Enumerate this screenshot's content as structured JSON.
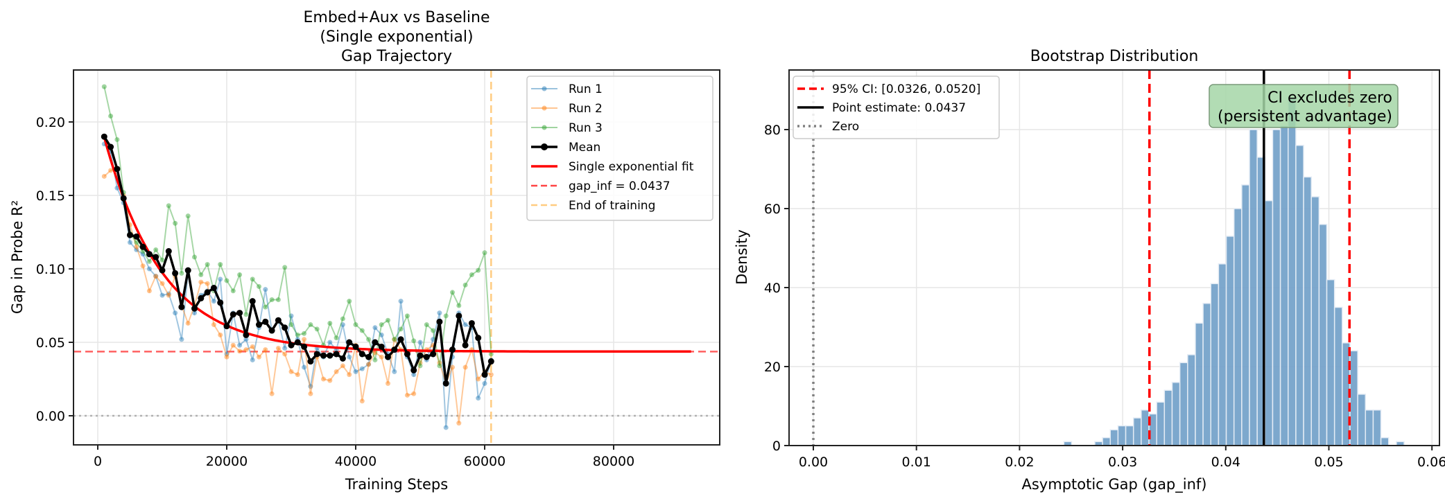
{
  "chart_data": [
    {
      "type": "line",
      "title": "Embed+Aux vs Baseline\n(Single exponential)\nGap Trajectory",
      "title_lines": [
        "Embed+Aux vs Baseline",
        "(Single exponential)",
        "Gap Trajectory"
      ],
      "xlabel": "Training Steps",
      "ylabel": "Gap in Probe R²",
      "xlim": [
        -4000,
        96000
      ],
      "ylim": [
        -0.02,
        0.235
      ],
      "xticks": [
        "0",
        "20000",
        "40000",
        "60000",
        "80000"
      ],
      "xtick_values": [
        0,
        20000,
        40000,
        60000,
        80000
      ],
      "yticks": [
        "0.00",
        "0.05",
        "0.10",
        "0.15",
        "0.20"
      ],
      "ytick_values": [
        0.0,
        0.05,
        0.1,
        0.15,
        0.2
      ],
      "grid": true,
      "legend_position": "upper right",
      "legend": [
        "Run 1",
        "Run 2",
        "Run 3",
        "Mean",
        "Single exponential fit",
        "gap_inf = 0.0437",
        "End of training"
      ],
      "x": [
        1000,
        2000,
        3000,
        4000,
        5000,
        6000,
        7000,
        8000,
        9000,
        10000,
        11000,
        12000,
        13000,
        14000,
        15000,
        16000,
        17000,
        18000,
        19000,
        20000,
        21000,
        22000,
        23000,
        24000,
        25000,
        26000,
        27000,
        28000,
        29000,
        30000,
        31000,
        32000,
        33000,
        34000,
        35000,
        36000,
        37000,
        38000,
        39000,
        40000,
        41000,
        42000,
        43000,
        44000,
        45000,
        46000,
        47000,
        48000,
        49000,
        50000,
        51000,
        52000,
        53000,
        54000,
        55000,
        56000,
        57000,
        58000,
        59000,
        60000,
        61000
      ],
      "series": [
        {
          "name": "Run 1",
          "color": "#1f77b4",
          "values": [
            0.185,
            0.18,
            0.155,
            0.145,
            0.118,
            0.113,
            0.11,
            0.1,
            0.095,
            0.082,
            0.083,
            0.07,
            0.052,
            0.098,
            0.07,
            0.082,
            0.085,
            0.078,
            0.093,
            0.042,
            0.07,
            0.048,
            0.052,
            0.038,
            0.06,
            0.086,
            0.058,
            0.065,
            0.046,
            0.068,
            0.052,
            0.033,
            0.02,
            0.046,
            0.04,
            0.05,
            0.045,
            0.062,
            0.04,
            0.03,
            0.032,
            0.035,
            0.06,
            0.055,
            0.042,
            0.03,
            0.078,
            0.04,
            0.028,
            0.05,
            0.038,
            0.052,
            0.07,
            -0.008,
            0.04,
            0.07,
            0.062,
            0.06,
            0.012,
            0.022,
            0.038
          ]
        },
        {
          "name": "Run 2",
          "color": "#ff7f0e",
          "values": [
            0.163,
            0.167,
            0.168,
            0.15,
            0.13,
            0.115,
            0.102,
            0.085,
            0.095,
            0.09,
            0.082,
            0.095,
            0.075,
            0.063,
            0.075,
            0.091,
            0.09,
            0.062,
            0.055,
            0.04,
            0.048,
            0.044,
            0.045,
            0.047,
            0.04,
            0.045,
            0.015,
            0.046,
            0.042,
            0.03,
            0.028,
            0.052,
            0.015,
            0.04,
            0.025,
            0.024,
            0.03,
            0.034,
            0.028,
            0.048,
            0.01,
            0.035,
            0.043,
            0.04,
            0.022,
            0.052,
            0.045,
            0.014,
            0.015,
            0.036,
            0.045,
            0.048,
            0.036,
            0.022,
            0.033,
            -0.005,
            0.033,
            0.045,
            0.025,
            0.03,
            0.028
          ]
        },
        {
          "name": "Run 3",
          "color": "#2ca02c",
          "values": [
            0.224,
            0.204,
            0.188,
            0.152,
            0.124,
            0.118,
            0.112,
            0.105,
            0.113,
            0.106,
            0.143,
            0.131,
            0.097,
            0.136,
            0.108,
            0.096,
            0.103,
            0.085,
            0.103,
            0.092,
            0.085,
            0.096,
            0.069,
            0.093,
            0.088,
            0.074,
            0.079,
            0.079,
            0.101,
            0.062,
            0.055,
            0.056,
            0.062,
            0.059,
            0.048,
            0.063,
            0.053,
            0.066,
            0.078,
            0.062,
            0.058,
            0.052,
            0.038,
            0.062,
            0.065,
            0.052,
            0.059,
            0.068,
            0.051,
            0.034,
            0.062,
            0.058,
            0.034,
            0.068,
            0.084,
            0.075,
            0.089,
            0.096,
            0.099,
            0.111,
            0.042
          ]
        },
        {
          "name": "Mean",
          "color": "#000000",
          "values": [
            0.19,
            0.183,
            0.168,
            0.148,
            0.123,
            0.122,
            0.115,
            0.11,
            0.108,
            0.099,
            0.112,
            0.097,
            0.074,
            0.099,
            0.073,
            0.08,
            0.084,
            0.087,
            0.077,
            0.061,
            0.069,
            0.07,
            0.055,
            0.078,
            0.062,
            0.064,
            0.058,
            0.065,
            0.06,
            0.048,
            0.05,
            0.047,
            0.037,
            0.042,
            0.041,
            0.041,
            0.042,
            0.039,
            0.05,
            0.047,
            0.042,
            0.04,
            0.05,
            0.047,
            0.04,
            0.045,
            0.052,
            0.042,
            0.031,
            0.041,
            0.04,
            0.042,
            0.064,
            0.022,
            0.045,
            0.068,
            0.048,
            0.063,
            0.053,
            0.028,
            0.037
          ]
        },
        {
          "name": "Single exponential fit",
          "color": "#ff0000",
          "style": "solid",
          "x_range": [
            1000,
            92000
          ],
          "a": 0.146,
          "tau": 9000,
          "c": 0.0437
        }
      ],
      "hlines": [
        {
          "name": "gap_inf = 0.0437",
          "y": 0.0437,
          "color": "#ff4444",
          "style": "dashed"
        },
        {
          "name": "zero",
          "y": 0.0,
          "color": "#aaaaaa",
          "style": "dotted"
        }
      ],
      "vlines": [
        {
          "name": "End of training",
          "x": 61000,
          "color": "#ffcc80",
          "style": "dashed"
        }
      ]
    },
    {
      "type": "bar",
      "subtype": "histogram",
      "title": "Bootstrap Distribution",
      "xlabel": "Asymptotic Gap (gap_inf)",
      "ylabel": "Density",
      "xlim": [
        -0.0031,
        0.0608
      ],
      "ylim": [
        0,
        95
      ],
      "xticks": [
        "0.00",
        "0.01",
        "0.02",
        "0.03",
        "0.04",
        "0.05",
        "0.06"
      ],
      "xtick_values": [
        0.0,
        0.01,
        0.02,
        0.03,
        0.04,
        0.05,
        0.06
      ],
      "yticks": [
        "0",
        "20",
        "40",
        "60",
        "80"
      ],
      "ytick_values": [
        0,
        20,
        40,
        60,
        80
      ],
      "grid": true,
      "legend_position": "upper left",
      "legend": [
        "95% CI: [0.0326, 0.0520]",
        "Point estimate: 0.0437",
        "Zero"
      ],
      "bin_width": 0.00075,
      "bin_start": 0.0243,
      "color": "#6f9ec8",
      "values": [
        1,
        0,
        0,
        0,
        1,
        2,
        4,
        5,
        5,
        7,
        9,
        8,
        11,
        14,
        16,
        21,
        23,
        31,
        36,
        41,
        46,
        53,
        60,
        66,
        80,
        73,
        62,
        80,
        81,
        88,
        76,
        68,
        63,
        56,
        42,
        35,
        26,
        24,
        13,
        9,
        9,
        2,
        0,
        1
      ],
      "vlines": [
        {
          "name": "95% CI lower",
          "x": 0.0326,
          "color": "#ff0000",
          "style": "dashed"
        },
        {
          "name": "95% CI upper",
          "x": 0.052,
          "color": "#ff0000",
          "style": "dashed"
        },
        {
          "name": "Point estimate",
          "x": 0.0437,
          "color": "#000000",
          "style": "solid"
        },
        {
          "name": "Zero",
          "x": 0.0,
          "color": "#808080",
          "style": "dotted"
        }
      ],
      "annotation": {
        "lines": [
          "CI excludes zero",
          "(persistent advantage)"
        ],
        "background": "#a5d6a7"
      }
    }
  ],
  "left": {
    "title_lines": [
      "Embed+Aux vs Baseline",
      "(Single exponential)",
      "Gap Trajectory"
    ],
    "xlabel": "Training Steps",
    "ylabel": "Gap in Probe R²",
    "legend": {
      "run1": "Run 1",
      "run2": "Run 2",
      "run3": "Run 3",
      "mean": "Mean",
      "fit": "Single exponential fit",
      "gapinf": "gap_inf = 0.0437",
      "end": "End of training"
    }
  },
  "right": {
    "title": "Bootstrap Distribution",
    "xlabel": "Asymptotic Gap (gap_inf)",
    "ylabel": "Density",
    "legend": {
      "ci": "95% CI: [0.0326, 0.0520]",
      "point": "Point estimate: 0.0437",
      "zero": "Zero"
    },
    "annotation": {
      "line1": "CI excludes zero",
      "line2": "(persistent advantage)"
    }
  }
}
